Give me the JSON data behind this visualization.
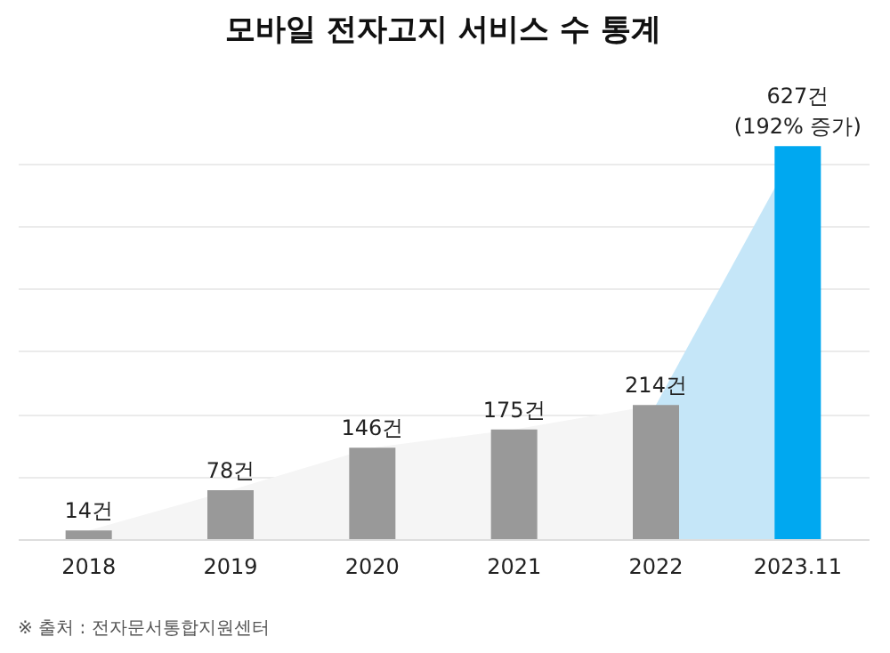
{
  "chart_data": {
    "type": "bar",
    "title": "모바일 전자고지 서비스 수 통계",
    "categories": [
      "2018",
      "2019",
      "2020",
      "2021",
      "2022",
      "2023.11"
    ],
    "series": [
      {
        "type": "area",
        "color": "#f5f5f5",
        "values": [
          14,
          78,
          146,
          175,
          214,
          null
        ]
      },
      {
        "type": "area",
        "color": "#c5e6f8",
        "values": [
          null,
          null,
          null,
          null,
          214,
          627
        ]
      },
      {
        "colors": [
          "#999999",
          "#999999",
          "#999999",
          "#999999",
          "#999999",
          "#00a8f0"
        ],
        "values": [
          14,
          78,
          146,
          175,
          214,
          627
        ],
        "value_labels": [
          "14건",
          "78건",
          "146건",
          "175건",
          "214건",
          "627건\n(192% 증가)"
        ]
      }
    ],
    "yticks": [
      {
        "value": 100,
        "label": null
      },
      {
        "value": 200,
        "label": null
      },
      {
        "value": 300,
        "label": null
      },
      {
        "value": 400,
        "label": null
      },
      {
        "value": 500,
        "label": null
      },
      {
        "value": 600,
        "label": null
      }
    ],
    "grid": "y",
    "tick_labels": "x",
    "annotations": [
      "※ 출처 : 전자문서통합지원센터"
    ]
  }
}
